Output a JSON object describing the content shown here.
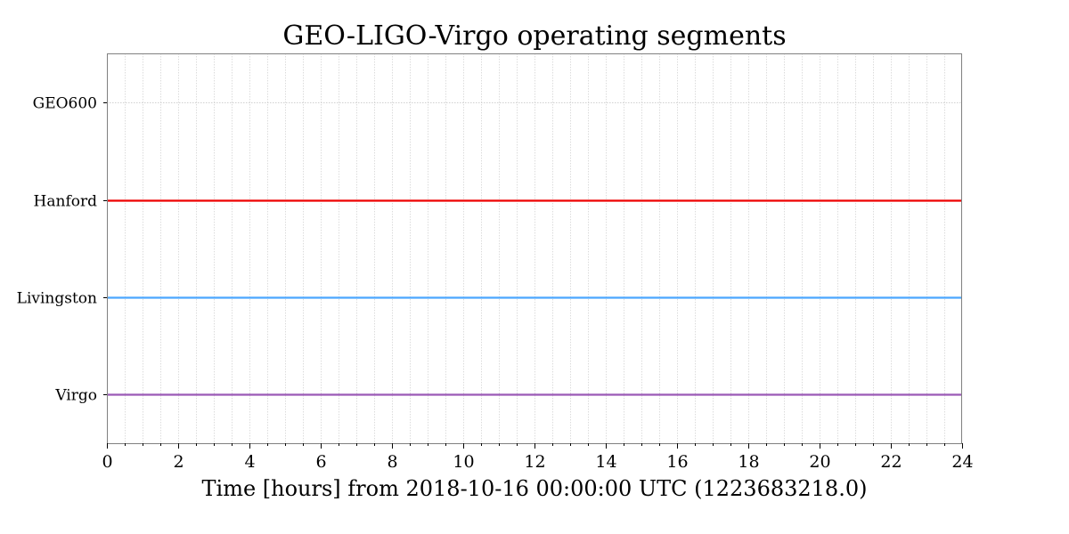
{
  "chart_data": {
    "type": "line",
    "title": "GEO-LIGO-Virgo operating segments",
    "xlabel": "Time [hours] from 2018-10-16 00:00:00 UTC (1223683218.0)",
    "ylabel": "",
    "xlim": [
      0,
      24
    ],
    "x_ticks": [
      0,
      2,
      4,
      6,
      8,
      10,
      12,
      14,
      16,
      18,
      20,
      22,
      24
    ],
    "x_minor_step": 0.5,
    "grid": true,
    "categories": [
      "GEO600",
      "Hanford",
      "Livingston",
      "Virgo"
    ],
    "series": [
      {
        "name": "GEO600",
        "color": "#c0c0c0",
        "segments": []
      },
      {
        "name": "Hanford",
        "color": "#ee0000",
        "segments": [
          [
            0,
            24
          ]
        ]
      },
      {
        "name": "Livingston",
        "color": "#4ba6ff",
        "segments": [
          [
            0,
            24
          ]
        ]
      },
      {
        "name": "Virgo",
        "color": "#9b59b6",
        "segments": [
          [
            0,
            24
          ]
        ]
      }
    ]
  }
}
